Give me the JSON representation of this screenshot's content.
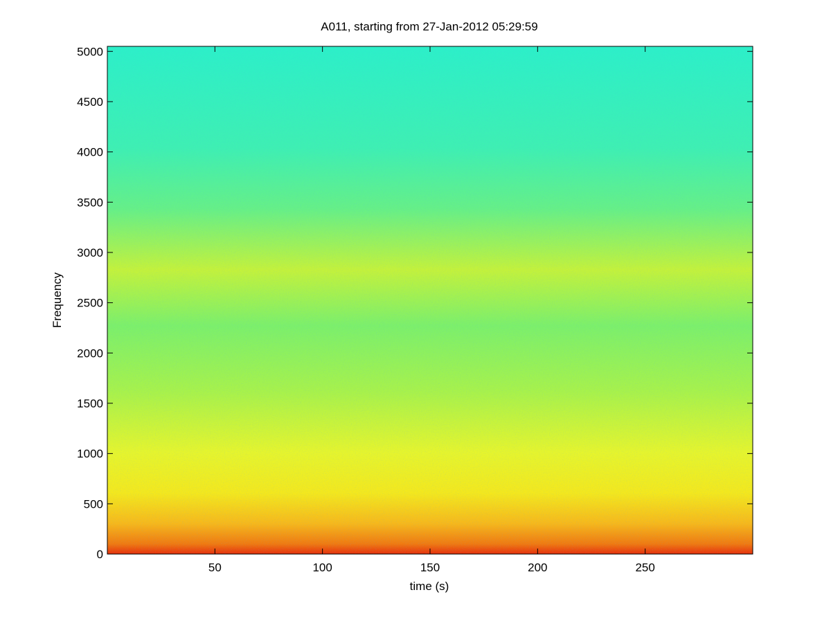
{
  "chart_data": {
    "type": "spectrogram",
    "title": "A011, starting from 27-Jan-2012 05:29:59",
    "xlabel": "time (s)",
    "ylabel": "Frequency",
    "xlim": [
      0,
      300
    ],
    "ylim": [
      0,
      5050
    ],
    "xticks": [
      50,
      100,
      150,
      200,
      250
    ],
    "yticks": [
      0,
      500,
      1000,
      1500,
      2000,
      2500,
      3000,
      3500,
      4000,
      4500,
      5000
    ]
  }
}
